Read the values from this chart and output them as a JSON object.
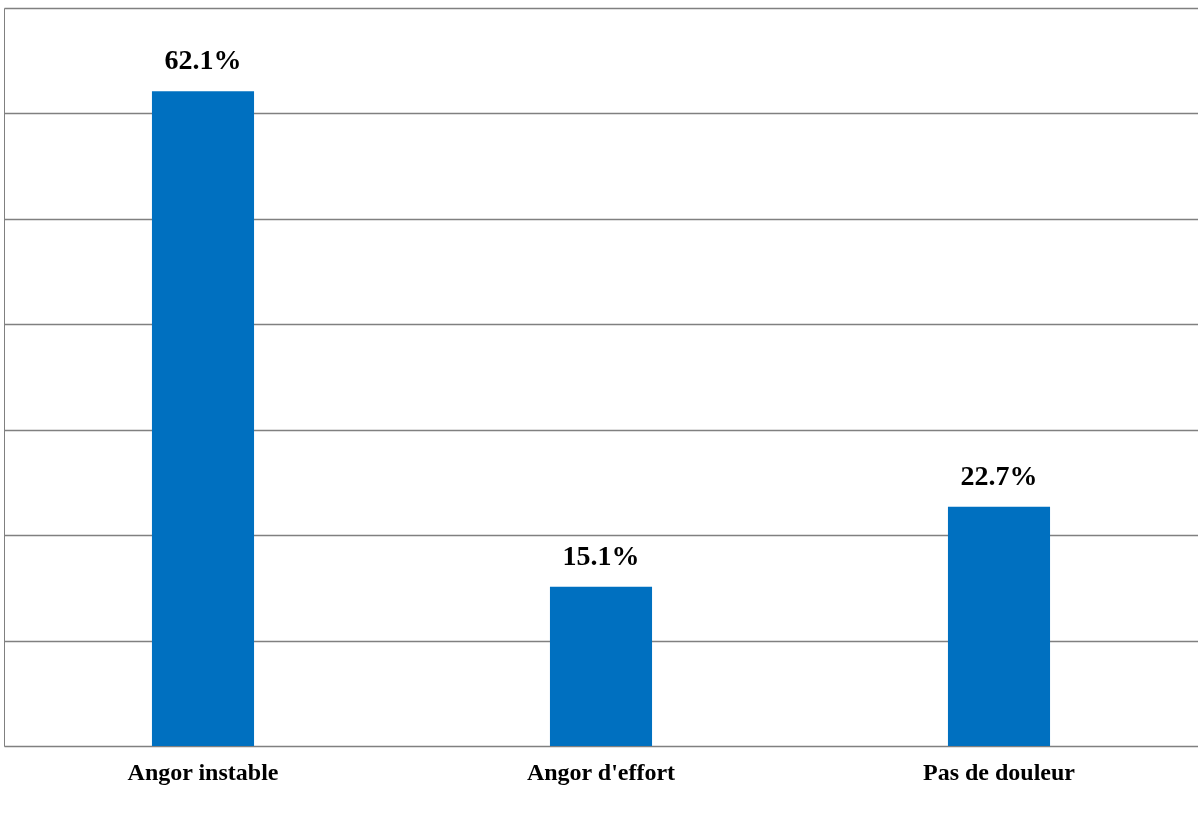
{
  "chart_data": {
    "type": "bar",
    "categories": [
      "Angor instable",
      "Angor d'effort",
      "Pas de douleur"
    ],
    "values": [
      62.1,
      15.1,
      22.7
    ],
    "value_labels": [
      "62.1%",
      "15.1%",
      "22.7%"
    ],
    "color": "#0070c0",
    "ylim": [
      0,
      70
    ],
    "yticks": [
      {
        "value": 0,
        "label": null
      },
      {
        "value": 10,
        "label": null
      },
      {
        "value": 20,
        "label": null
      },
      {
        "value": 30,
        "label": null
      },
      {
        "value": 40,
        "label": null
      },
      {
        "value": 50,
        "label": null
      },
      {
        "value": 60,
        "label": null
      },
      {
        "value": 70,
        "label": null
      }
    ],
    "grid": "y",
    "tick_labels": "x"
  }
}
